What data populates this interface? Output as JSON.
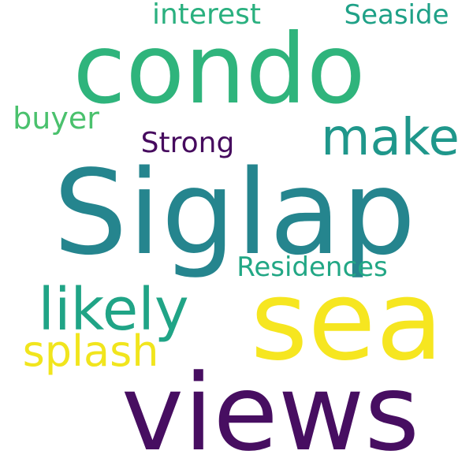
{
  "background_color": "#ffffff",
  "words": [
    {
      "id": "condo",
      "text": "condo",
      "color": "#2fb47c"
    },
    {
      "id": "siglap",
      "text": "Siglap",
      "color": "#25858e"
    },
    {
      "id": "sea",
      "text": "sea",
      "color": "#f6e620"
    },
    {
      "id": "views",
      "text": "views",
      "color": "#470e61"
    },
    {
      "id": "likely",
      "text": "likely",
      "color": "#20a486"
    },
    {
      "id": "make",
      "text": "make",
      "color": "#1f978b"
    },
    {
      "id": "splash",
      "text": "splash",
      "color": "#f1e51d"
    },
    {
      "id": "strong",
      "text": "Strong",
      "color": "#460b5e"
    },
    {
      "id": "residences",
      "text": "Residences",
      "color": "#22a785"
    },
    {
      "id": "interest",
      "text": "interest",
      "color": "#2ab07f"
    },
    {
      "id": "seaside",
      "text": "Seaside",
      "color": "#1fa187"
    },
    {
      "id": "buyer",
      "text": "buyer",
      "color": "#4ac16d"
    }
  ]
}
